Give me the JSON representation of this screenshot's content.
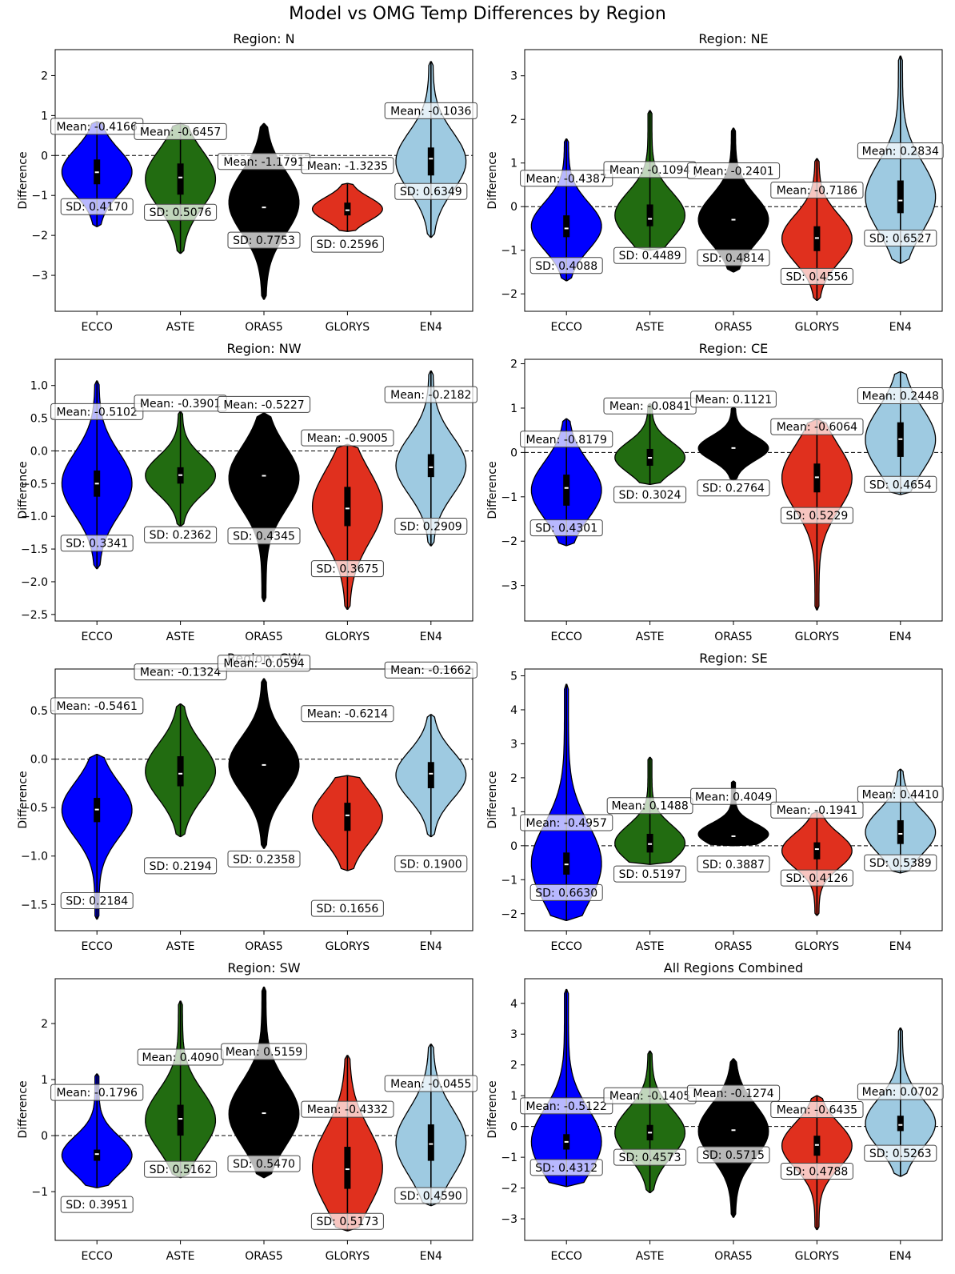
{
  "figure_title": "Model vs OMG Temp Differences by Region",
  "colors": {
    "ECCO": "#0000ff",
    "ASTE": "#226c11",
    "ORAS5": "#000000",
    "GLORYS": "#e0301e",
    "EN4": "#9ecae1"
  },
  "chart_data": [
    {
      "type": "violin",
      "title": "Region: N",
      "ylabel": "Difference",
      "ylim": [
        -3.9,
        2.65
      ],
      "yticks": [
        -3,
        -2,
        -1,
        0,
        1,
        2
      ],
      "categories": [
        "ECCO",
        "ASTE",
        "ORAS5",
        "GLORYS",
        "EN4"
      ],
      "mean": [
        -0.4166,
        -0.6457,
        -1.1791,
        -1.3235,
        -0.1036
      ],
      "sd": [
        0.417,
        0.5076,
        0.7753,
        0.2596,
        0.6349
      ],
      "min": [
        -1.78,
        -2.45,
        -3.6,
        -1.9,
        -2.05
      ],
      "max": [
        0.85,
        0.8,
        0.8,
        -0.7,
        2.35
      ],
      "q1": [
        -0.72,
        -0.98,
        -1.6,
        -1.5,
        -0.5
      ],
      "median": [
        -0.42,
        -0.55,
        -1.3,
        -1.37,
        -0.08
      ],
      "q3": [
        -0.1,
        -0.2,
        -0.75,
        -1.18,
        0.2
      ],
      "mean_label_y": [
        0.73,
        0.6,
        -0.15,
        -0.25,
        1.12
      ],
      "sd_label_y": [
        -1.28,
        -1.42,
        -2.12,
        -2.22,
        -0.9
      ],
      "mean_labels": [
        "Mean: -0.4166",
        "Mean: -0.6457",
        "Mean: -1.1791",
        "Mean: -1.3235",
        "Mean: -0.1036"
      ],
      "sd_labels": [
        "SD: 0.4170",
        "SD: 0.5076",
        "SD: 0.7753",
        "SD: 0.2596",
        "SD: 0.6349"
      ]
    },
    {
      "type": "violin",
      "title": "Region: NE",
      "ylabel": "Difference",
      "ylim": [
        -2.4,
        3.6
      ],
      "yticks": [
        -2,
        -1,
        0,
        1,
        2,
        3
      ],
      "categories": [
        "ECCO",
        "ASTE",
        "ORAS5",
        "GLORYS",
        "EN4"
      ],
      "mean": [
        -0.4387,
        -0.1094,
        -0.2401,
        -0.7186,
        0.2834
      ],
      "sd": [
        0.4088,
        0.4489,
        0.4814,
        0.4556,
        0.6527
      ],
      "min": [
        -1.7,
        -1.0,
        -1.5,
        -2.15,
        -1.3
      ],
      "max": [
        1.55,
        2.2,
        1.8,
        1.1,
        3.45
      ],
      "q1": [
        -0.7,
        -0.45,
        -0.5,
        -1.02,
        -0.15
      ],
      "median": [
        -0.5,
        -0.28,
        -0.3,
        -0.72,
        0.14
      ],
      "q3": [
        -0.2,
        0.05,
        -0.1,
        -0.45,
        0.6
      ],
      "mean_label_y": [
        0.65,
        0.85,
        0.82,
        0.38,
        1.28
      ],
      "sd_label_y": [
        -1.35,
        -1.12,
        -1.17,
        -1.6,
        -0.72
      ],
      "mean_labels": [
        "Mean: -0.4387",
        "Mean: -0.1094",
        "Mean: -0.2401",
        "Mean: -0.7186",
        "Mean: 0.2834"
      ],
      "sd_labels": [
        "SD: 0.4088",
        "SD: 0.4489",
        "SD: 0.4814",
        "SD: 0.4556",
        "SD: 0.6527"
      ]
    },
    {
      "type": "violin",
      "title": "Region: NW",
      "ylabel": "Difference",
      "ylim": [
        -2.6,
        1.4
      ],
      "yticks": [
        -2.5,
        -2.0,
        -1.5,
        -1.0,
        -0.5,
        0.0,
        0.5,
        1.0
      ],
      "categories": [
        "ECCO",
        "ASTE",
        "ORAS5",
        "GLORYS",
        "EN4"
      ],
      "mean": [
        -0.5102,
        -0.3901,
        -0.5227,
        -0.9005,
        -0.2182
      ],
      "sd": [
        0.3341,
        0.2362,
        0.4345,
        0.3675,
        0.2909
      ],
      "min": [
        -1.8,
        -1.15,
        -2.3,
        -2.42,
        -1.45
      ],
      "max": [
        1.07,
        0.6,
        0.58,
        0.1,
        1.22
      ],
      "q1": [
        -0.7,
        -0.5,
        -0.55,
        -1.15,
        -0.4
      ],
      "median": [
        -0.5,
        -0.37,
        -0.38,
        -0.88,
        -0.25
      ],
      "q3": [
        -0.3,
        -0.25,
        -0.28,
        -0.55,
        -0.05
      ],
      "mean_label_y": [
        0.6,
        0.73,
        0.71,
        0.2,
        0.86
      ],
      "sd_label_y": [
        -1.41,
        -1.28,
        -1.3,
        -1.8,
        -1.15
      ],
      "mean_labels": [
        "Mean: -0.5102",
        "Mean: -0.3901",
        "Mean: -0.5227",
        "Mean: -0.9005",
        "Mean: -0.2182"
      ],
      "sd_labels": [
        "SD: 0.3341",
        "SD: 0.2362",
        "SD: 0.4345",
        "SD: 0.3675",
        "SD: 0.2909"
      ]
    },
    {
      "type": "violin",
      "title": "Region: CE",
      "ylabel": "Difference",
      "ylim": [
        -3.8,
        2.1
      ],
      "yticks": [
        -3,
        -2,
        -1,
        0,
        1,
        2
      ],
      "categories": [
        "ECCO",
        "ASTE",
        "ORAS5",
        "GLORYS",
        "EN4"
      ],
      "mean": [
        -0.8179,
        -0.0841,
        0.1121,
        -0.6064,
        0.2448
      ],
      "sd": [
        0.4301,
        0.3024,
        0.2764,
        0.5229,
        0.4654
      ],
      "min": [
        -2.1,
        -0.72,
        -0.62,
        -3.55,
        -0.95
      ],
      "max": [
        0.76,
        1.1,
        1.02,
        0.75,
        1.82
      ],
      "q1": [
        -1.2,
        -0.3,
        0.06,
        -0.9,
        -0.1
      ],
      "median": [
        -0.8,
        -0.12,
        0.1,
        -0.56,
        0.3
      ],
      "q3": [
        -0.5,
        0.08,
        0.13,
        -0.25,
        0.68
      ],
      "mean_label_y": [
        0.3,
        1.05,
        1.2,
        0.58,
        1.28
      ],
      "sd_label_y": [
        -1.7,
        -0.95,
        -0.8,
        -1.42,
        -0.72
      ],
      "mean_labels": [
        "Mean: -0.8179",
        "Mean: -0.0841",
        "Mean: 0.1121",
        "Mean: -0.6064",
        "Mean: 0.2448"
      ],
      "sd_labels": [
        "SD: 0.4301",
        "SD: 0.3024",
        "SD: 0.2764",
        "SD: 0.5229",
        "SD: 0.4654"
      ]
    },
    {
      "type": "violin",
      "title": "Region: CW",
      "ylabel": "Difference",
      "ylim": [
        -1.77,
        0.93
      ],
      "yticks": [
        -1.5,
        -1.0,
        -0.5,
        0.0,
        0.5
      ],
      "categories": [
        "ECCO",
        "ASTE",
        "ORAS5",
        "GLORYS",
        "EN4"
      ],
      "mean": [
        -0.5461,
        -0.1324,
        -0.0594,
        -0.6214,
        -0.1662
      ],
      "sd": [
        0.2184,
        0.2194,
        0.2358,
        0.1656,
        0.19
      ],
      "min": [
        -1.65,
        -0.8,
        -0.92,
        -1.15,
        -0.8
      ],
      "max": [
        0.05,
        0.57,
        0.83,
        -0.17,
        0.46
      ],
      "q1": [
        -0.65,
        -0.28,
        -0.2,
        -0.74,
        -0.3
      ],
      "median": [
        -0.52,
        -0.15,
        -0.06,
        -0.58,
        -0.15
      ],
      "q3": [
        -0.4,
        0.03,
        0.08,
        -0.45,
        -0.03
      ],
      "mean_label_y": [
        0.55,
        0.9,
        0.99,
        0.47,
        0.92
      ],
      "sd_label_y": [
        -1.46,
        -1.1,
        -1.03,
        -1.54,
        -1.08
      ],
      "mean_labels": [
        "Mean: -0.5461",
        "Mean: -0.1324",
        "Mean: -0.0594",
        "Mean: -0.6214",
        "Mean: -0.1662"
      ],
      "sd_labels": [
        "SD: 0.2184",
        "SD: 0.2194",
        "SD: 0.2358",
        "SD: 0.1656",
        "SD: 0.1900"
      ]
    },
    {
      "type": "violin",
      "title": "Region: SE",
      "ylabel": "Difference",
      "ylim": [
        -2.5,
        5.2
      ],
      "yticks": [
        -2,
        -1,
        0,
        1,
        2,
        3,
        4,
        5
      ],
      "categories": [
        "ECCO",
        "ASTE",
        "ORAS5",
        "GLORYS",
        "EN4"
      ],
      "mean": [
        -0.4957,
        0.1488,
        0.4049,
        -0.1941,
        0.441
      ],
      "sd": [
        0.663,
        0.5197,
        0.3887,
        0.4126,
        0.5389
      ],
      "min": [
        -2.2,
        -0.55,
        0.0,
        -2.05,
        -0.8
      ],
      "max": [
        4.75,
        2.6,
        1.9,
        1.0,
        2.25
      ],
      "q1": [
        -0.85,
        -0.2,
        0.18,
        -0.4,
        0.05
      ],
      "median": [
        -0.55,
        0.05,
        0.28,
        -0.1,
        0.35
      ],
      "q3": [
        -0.2,
        0.35,
        0.5,
        0.1,
        0.75
      ],
      "mean_label_y": [
        0.68,
        1.18,
        1.45,
        1.05,
        1.52
      ],
      "sd_label_y": [
        -1.38,
        -0.83,
        -0.54,
        -0.95,
        -0.5
      ],
      "mean_labels": [
        "Mean: -0.4957",
        "Mean: 0.1488",
        "Mean: 0.4049",
        "Mean: -0.1941",
        "Mean: 0.4410"
      ],
      "sd_labels": [
        "SD: 0.6630",
        "SD: 0.5197",
        "SD: 0.3887",
        "SD: 0.4126",
        "SD: 0.5389"
      ]
    },
    {
      "type": "violin",
      "title": "Region: SW",
      "ylabel": "Difference",
      "ylim": [
        -1.87,
        2.8
      ],
      "yticks": [
        -1,
        0,
        1,
        2
      ],
      "categories": [
        "ECCO",
        "ASTE",
        "ORAS5",
        "GLORYS",
        "EN4"
      ],
      "mean": [
        -0.1796,
        0.409,
        0.5159,
        -0.4332,
        -0.0455
      ],
      "sd": [
        0.3951,
        0.5162,
        0.547,
        0.5173,
        0.459
      ],
      "min": [
        -0.93,
        -0.75,
        -0.75,
        -1.7,
        -1.25
      ],
      "max": [
        1.1,
        2.4,
        2.65,
        1.43,
        1.63
      ],
      "q1": [
        -0.45,
        0.0,
        0.2,
        -0.95,
        -0.45
      ],
      "median": [
        -0.33,
        0.3,
        0.4,
        -0.6,
        -0.15
      ],
      "q3": [
        -0.25,
        0.55,
        0.58,
        -0.2,
        0.2
      ],
      "mean_label_y": [
        0.77,
        1.4,
        1.5,
        0.47,
        0.93
      ],
      "sd_label_y": [
        -1.23,
        -0.6,
        -0.5,
        -1.53,
        -1.07
      ],
      "mean_labels": [
        "Mean: -0.1796",
        "Mean: 0.4090",
        "Mean: 0.5159",
        "Mean: -0.4332",
        "Mean: -0.0455"
      ],
      "sd_labels": [
        "SD: 0.3951",
        "SD: 0.5162",
        "SD: 0.5470",
        "SD: 0.5173",
        "SD: 0.4590"
      ]
    },
    {
      "type": "violin",
      "title": "All Regions Combined",
      "ylabel": "Difference",
      "ylim": [
        -3.7,
        4.8
      ],
      "yticks": [
        -3,
        -2,
        -1,
        0,
        1,
        2,
        3,
        4
      ],
      "categories": [
        "ECCO",
        "ASTE",
        "ORAS5",
        "GLORYS",
        "EN4"
      ],
      "mean": [
        -0.5122,
        -0.1405,
        -0.1274,
        -0.6435,
        0.0702
      ],
      "sd": [
        0.4312,
        0.4573,
        0.5715,
        0.4788,
        0.5263
      ],
      "min": [
        -1.95,
        -2.15,
        -2.95,
        -3.35,
        -1.62
      ],
      "max": [
        4.45,
        2.45,
        2.2,
        1.0,
        3.2
      ],
      "q1": [
        -0.75,
        -0.45,
        -0.35,
        -0.95,
        -0.15
      ],
      "median": [
        -0.5,
        -0.2,
        -0.12,
        -0.6,
        0.05
      ],
      "q3": [
        -0.25,
        0.05,
        0.05,
        -0.3,
        0.35
      ],
      "mean_label_y": [
        0.67,
        1.0,
        1.08,
        0.55,
        1.13
      ],
      "sd_label_y": [
        -1.33,
        -1.0,
        -0.92,
        -1.45,
        -0.87
      ],
      "mean_labels": [
        "Mean: -0.5122",
        "Mean: -0.1405",
        "Mean: -0.1274",
        "Mean: -0.6435",
        "Mean: 0.0702"
      ],
      "sd_labels": [
        "SD: 0.4312",
        "SD: 0.4573",
        "SD: 0.5715",
        "SD: 0.4788",
        "SD: 0.5263"
      ]
    }
  ]
}
